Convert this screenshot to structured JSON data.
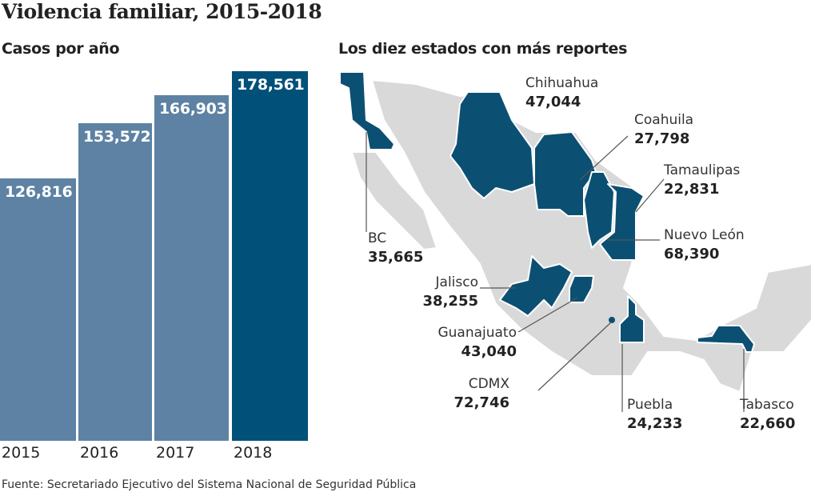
{
  "title": "Violencia familiar, 2015-2018",
  "colors": {
    "bar": "#5d82a3",
    "bar_highlight": "#00507a",
    "state_highlight": "#0b5073",
    "state_other": "#d9d9d9"
  },
  "chart_data": [
    {
      "type": "bar",
      "title": "Casos por año",
      "categories": [
        "2015",
        "2016",
        "2017",
        "2018"
      ],
      "values": [
        126816,
        153572,
        166903,
        178561
      ],
      "value_labels": [
        "126,816",
        "153,572",
        "166,903",
        "178,561"
      ],
      "highlight": "2018",
      "ylim": [
        0,
        178561
      ],
      "grid": false
    },
    {
      "type": "map",
      "title": "Los diez estados con más reportes",
      "states": [
        {
          "name": "Chihuahua",
          "value": "47,044"
        },
        {
          "name": "Coahuila",
          "value": "27,798"
        },
        {
          "name": "Tamaulipas",
          "value": "22,831"
        },
        {
          "name": "BC",
          "value": "35,665"
        },
        {
          "name": "Nuevo León",
          "value": "68,390"
        },
        {
          "name": "Jalisco",
          "value": "38,255"
        },
        {
          "name": "Guanajuato",
          "value": "43,040"
        },
        {
          "name": "CDMX",
          "value": "72,746"
        },
        {
          "name": "Puebla",
          "value": "24,233"
        },
        {
          "name": "Tabasco",
          "value": "22,660"
        }
      ]
    }
  ],
  "footer": "Fuente: Secretariado Ejecutivo del Sistema Nacional de Seguridad Pública"
}
